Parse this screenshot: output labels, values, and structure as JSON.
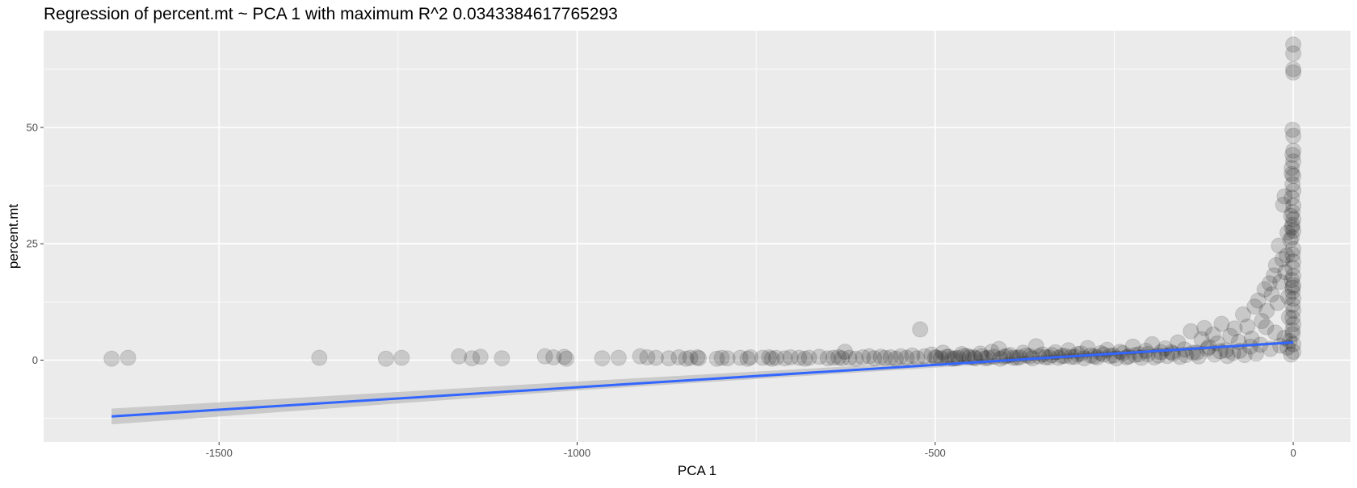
{
  "chart_data": {
    "type": "scatter",
    "title": "Regression of percent.mt ~ PCA 1 with maximum R^2 0.0343384617765293",
    "xlabel": "PCA 1",
    "ylabel": "percent.mt",
    "xlim": [
      -1745,
      80
    ],
    "ylim": [
      -17.6,
      70.8
    ],
    "x_ticks": [
      {
        "value": -1500,
        "label": "-1500"
      },
      {
        "value": -1000,
        "label": "-1000"
      },
      {
        "value": -500,
        "label": "-500"
      },
      {
        "value": 0,
        "label": "0"
      }
    ],
    "y_ticks": [
      {
        "value": 0,
        "label": "0"
      },
      {
        "value": 25,
        "label": "25"
      },
      {
        "value": 50,
        "label": "50"
      }
    ],
    "x_minor": [
      -1750,
      -1250,
      -750,
      -250
    ],
    "y_minor": [
      -12.5,
      12.5,
      37.5,
      62.5
    ],
    "grid": true,
    "colors": {
      "panel": "#ebebeb",
      "grid": "#ffffff",
      "points": "#000000",
      "fit_line": "#3366ff",
      "ribbon": "#bfbfbf"
    },
    "point_alpha": 0.15,
    "fit": {
      "line": [
        [
          -1650,
          -12.1
        ],
        [
          0,
          3.8
        ]
      ],
      "band": [
        [
          -1650,
          -13.8,
          -10.4
        ],
        [
          -1000,
          -6.5,
          -4.6
        ],
        [
          -500,
          -1.6,
          -0.3
        ],
        [
          0,
          3.5,
          4.1
        ]
      ]
    },
    "points": [
      [
        -1650,
        0.3
      ],
      [
        -1627,
        0.5
      ],
      [
        -1360,
        0.5
      ],
      [
        -1267,
        0.3
      ],
      [
        -1245,
        0.5
      ],
      [
        -1165,
        0.8
      ],
      [
        -1147,
        0.4
      ],
      [
        -1135,
        0.7
      ],
      [
        -1105,
        0.4
      ],
      [
        -1045,
        0.8
      ],
      [
        -1033,
        0.6
      ],
      [
        -1018,
        0.7
      ],
      [
        -1015,
        0.3
      ],
      [
        -965,
        0.4
      ],
      [
        -942,
        0.5
      ],
      [
        -912,
        0.8
      ],
      [
        -902,
        0.6
      ],
      [
        -890,
        0.5
      ],
      [
        -872,
        0.4
      ],
      [
        -858,
        0.6
      ],
      [
        -848,
        0.3
      ],
      [
        -842,
        0.5
      ],
      [
        -832,
        0.6
      ],
      [
        -830,
        0.4
      ],
      [
        -805,
        0.3
      ],
      [
        -798,
        0.5
      ],
      [
        -790,
        0.4
      ],
      [
        -772,
        0.5
      ],
      [
        -762,
        0.3
      ],
      [
        -758,
        0.6
      ],
      [
        -741,
        0.5
      ],
      [
        -732,
        0.6
      ],
      [
        -728,
        0.3
      ],
      [
        -722,
        0.5
      ],
      [
        -710,
        0.4
      ],
      [
        -702,
        0.6
      ],
      [
        -690,
        0.5
      ],
      [
        -682,
        0.3
      ],
      [
        -676,
        0.5
      ],
      [
        -662,
        0.7
      ],
      [
        -650,
        0.4
      ],
      [
        -642,
        0.5
      ],
      [
        -635,
        0.6
      ],
      [
        -630,
        0.4
      ],
      [
        -626,
        1.8
      ],
      [
        -620,
        0.5
      ],
      [
        -611,
        0.3
      ],
      [
        -601,
        0.6
      ],
      [
        -592,
        0.8
      ],
      [
        -585,
        0.4
      ],
      [
        -576,
        0.7
      ],
      [
        -570,
        0.5
      ],
      [
        -562,
        0.6
      ],
      [
        -555,
        0.3
      ],
      [
        -548,
        0.8
      ],
      [
        -540,
        0.5
      ],
      [
        -532,
        1.0
      ],
      [
        -525,
        0.4
      ],
      [
        -521,
        6.6
      ],
      [
        -515,
        0.8
      ],
      [
        -505,
        1.2
      ],
      [
        -498,
        0.5
      ],
      [
        -489,
        1.6
      ],
      [
        -481,
        0.7
      ],
      [
        -472,
        0.4
      ],
      [
        -463,
        1.3
      ],
      [
        -455,
        0.9
      ],
      [
        -446,
        0.6
      ],
      [
        -437,
        1.4
      ],
      [
        -430,
        0.4
      ],
      [
        -421,
        1.8
      ],
      [
        -411,
        2.4
      ],
      [
        -404,
        0.7
      ],
      [
        -395,
        1.1
      ],
      [
        -386,
        0.5
      ],
      [
        -377,
        1.6
      ],
      [
        -368,
        0.8
      ],
      [
        -359,
        3.0
      ],
      [
        -350,
        1.2
      ],
      [
        -341,
        0.6
      ],
      [
        -332,
        1.7
      ],
      [
        -323,
        0.9
      ],
      [
        -314,
        2.1
      ],
      [
        -305,
        0.7
      ],
      [
        -296,
        1.4
      ],
      [
        -287,
        2.6
      ],
      [
        -278,
        0.8
      ],
      [
        -269,
        1.5
      ],
      [
        -260,
        2.2
      ],
      [
        -251,
        1.0
      ],
      [
        -242,
        1.8
      ],
      [
        -233,
        0.6
      ],
      [
        -224,
        2.9
      ],
      [
        -215,
        1.3
      ],
      [
        -206,
        2.0
      ],
      [
        -197,
        3.4
      ],
      [
        -188,
        1.0
      ],
      [
        -179,
        2.5
      ],
      [
        -170,
        1.7
      ],
      [
        -161,
        3.8
      ],
      [
        -152,
        2.3
      ],
      [
        -143,
        6.2
      ],
      [
        -135,
        1.6
      ],
      [
        -128,
        4.5
      ],
      [
        -124,
        6.9
      ],
      [
        -118,
        2.8
      ],
      [
        -112,
        5.5
      ],
      [
        -106,
        3.6
      ],
      [
        -100,
        7.8
      ],
      [
        -94,
        2.1
      ],
      [
        -88,
        5.2
      ],
      [
        -82,
        6.8
      ],
      [
        -76,
        3.9
      ],
      [
        -70,
        9.8
      ],
      [
        -64,
        7.2
      ],
      [
        -58,
        4.6
      ],
      [
        -54,
        11.5
      ],
      [
        -49,
        12.8
      ],
      [
        -44,
        8.4
      ],
      [
        -40,
        15.2
      ],
      [
        -37,
        10.6
      ],
      [
        -33,
        16.5
      ],
      [
        -30,
        14.1
      ],
      [
        -27,
        18.2
      ],
      [
        -24,
        20.4
      ],
      [
        -22,
        12.3
      ],
      [
        -20,
        24.6
      ],
      [
        -18,
        16.8
      ],
      [
        -15,
        21.7
      ],
      [
        -14,
        33.4
      ],
      [
        -12,
        35.2
      ],
      [
        -11,
        18.9
      ],
      [
        -9,
        22.5
      ],
      [
        -8,
        27.4
      ],
      [
        -7,
        13.6
      ],
      [
        -6,
        9.2
      ],
      [
        -5,
        4.1
      ],
      [
        -4,
        25.8
      ],
      [
        -3,
        31.0
      ],
      [
        -2,
        40.0
      ],
      [
        -2,
        28.5
      ],
      [
        -1,
        15.6
      ],
      [
        -1,
        6.4
      ],
      [
        0,
        1.8
      ],
      [
        0,
        45.0
      ],
      [
        -1,
        49.5
      ],
      [
        0,
        48.2
      ],
      [
        -1,
        44.1
      ],
      [
        0,
        42.7
      ],
      [
        -2,
        41.3
      ],
      [
        0,
        39.6
      ],
      [
        -1,
        37.8
      ],
      [
        0,
        36.4
      ],
      [
        -2,
        34.9
      ],
      [
        0,
        33.2
      ],
      [
        -1,
        31.8
      ],
      [
        0,
        30.3
      ],
      [
        -1,
        29.1
      ],
      [
        0,
        27.8
      ],
      [
        -2,
        26.4
      ],
      [
        0,
        23.9
      ],
      [
        -1,
        22.7
      ],
      [
        0,
        21.2
      ],
      [
        -1,
        19.8
      ],
      [
        0,
        18.1
      ],
      [
        -2,
        17.2
      ],
      [
        0,
        16.1
      ],
      [
        -1,
        14.7
      ],
      [
        0,
        13.2
      ],
      [
        -1,
        11.9
      ],
      [
        0,
        10.6
      ],
      [
        -1,
        9.1
      ],
      [
        0,
        7.7
      ],
      [
        -1,
        5.6
      ],
      [
        0,
        3.4
      ],
      [
        0,
        61.8
      ],
      [
        0,
        62.5
      ],
      [
        0,
        65.9
      ],
      [
        0,
        67.8
      ],
      [
        -3,
        1.2
      ],
      [
        -8,
        2.7
      ],
      [
        -12,
        4.8
      ],
      [
        -18,
        3.1
      ],
      [
        -25,
        5.9
      ],
      [
        -32,
        2.4
      ],
      [
        -38,
        7.1
      ],
      [
        -46,
        3.3
      ],
      [
        -52,
        1.4
      ],
      [
        -60,
        2.9
      ],
      [
        -68,
        1.1
      ],
      [
        -75,
        2.0
      ],
      [
        -84,
        1.5
      ],
      [
        -92,
        0.9
      ],
      [
        -102,
        1.9
      ],
      [
        -110,
        1.2
      ],
      [
        -120,
        2.4
      ],
      [
        -132,
        0.8
      ],
      [
        -140,
        1.6
      ],
      [
        -150,
        1.1
      ],
      [
        -158,
        0.7
      ],
      [
        -168,
        1.4
      ],
      [
        -176,
        0.9
      ],
      [
        -185,
        1.7
      ],
      [
        -194,
        0.6
      ],
      [
        -203,
        1.3
      ],
      [
        -212,
        0.5
      ],
      [
        -221,
        1.1
      ],
      [
        -230,
        0.8
      ],
      [
        -238,
        1.5
      ],
      [
        -247,
        0.4
      ],
      [
        -256,
        0.9
      ],
      [
        -265,
        1.2
      ],
      [
        -274,
        0.6
      ],
      [
        -283,
        1.0
      ],
      [
        -292,
        0.4
      ],
      [
        -301,
        1.3
      ],
      [
        -310,
        0.7
      ],
      [
        -319,
        0.9
      ],
      [
        -328,
        0.5
      ],
      [
        -337,
        1.1
      ],
      [
        -346,
        0.6
      ],
      [
        -355,
        0.8
      ],
      [
        -364,
        0.4
      ],
      [
        -373,
        1.0
      ],
      [
        -382,
        0.6
      ],
      [
        -391,
        0.5
      ],
      [
        -400,
        0.9
      ],
      [
        -409,
        0.3
      ],
      [
        -418,
        0.7
      ],
      [
        -426,
        0.5
      ],
      [
        -435,
        0.8
      ],
      [
        -444,
        0.4
      ],
      [
        -452,
        0.6
      ],
      [
        -460,
        0.9
      ],
      [
        -468,
        0.5
      ],
      [
        -476,
        0.3
      ],
      [
        -484,
        0.7
      ],
      [
        -492,
        0.4
      ],
      [
        -500,
        0.6
      ]
    ]
  }
}
